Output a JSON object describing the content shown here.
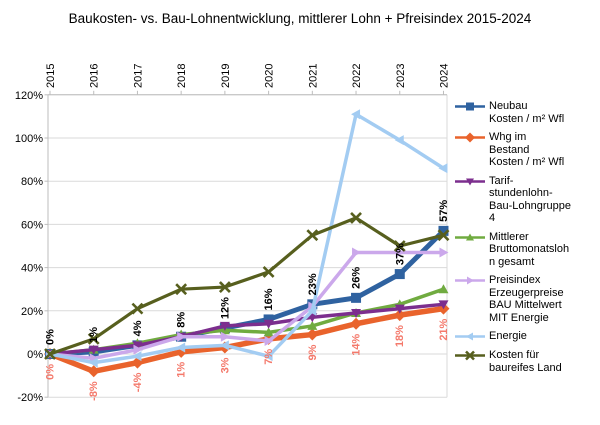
{
  "title": "Baukosten- vs. Bau-Lohnentwicklung, mittlerer Lohn + Pfreisindex 2015-2024",
  "chart_data": {
    "type": "line",
    "x_labels": [
      "2015",
      "2016",
      "2017",
      "2018",
      "2019",
      "2020",
      "2021",
      "2022",
      "2023",
      "2024"
    ],
    "ylim": [
      -20,
      120
    ],
    "y_ticks": [
      120,
      100,
      80,
      60,
      40,
      20,
      0,
      -20
    ],
    "y_tick_labels": [
      "120%",
      "100%",
      "80%",
      "60%",
      "40%",
      "20%",
      "0%",
      "-20%"
    ],
    "grid": true,
    "legend_position": "right",
    "series": [
      {
        "name": "Neubau Kosten / m² Wfl",
        "legend_lines": [
          "Neubau",
          "Kosten / m² Wfl"
        ],
        "color": "#2F62A0",
        "marker": "square",
        "values": [
          0,
          1,
          4,
          8,
          12,
          16,
          23,
          26,
          37,
          57
        ],
        "data_labels": [
          "0%",
          "1%",
          "4%",
          "8%",
          "12%",
          "16%",
          "23%",
          "26%",
          "37%",
          "57%"
        ],
        "label_color": "#000000",
        "label_position": "above"
      },
      {
        "name": "Whg im Bestand Kosten / m² Wfl",
        "legend_lines": [
          "Whg im",
          "Bestand",
          "Kosten / m² Wfl"
        ],
        "color": "#E9632C",
        "marker": "diamond",
        "values": [
          0,
          -8,
          -4,
          1,
          3,
          7,
          9,
          14,
          18,
          21
        ],
        "data_labels": [
          "0%",
          "-8%",
          "-4%",
          "1%",
          "3%",
          "7%",
          "9%",
          "14%",
          "18%",
          "21%"
        ],
        "label_color": "#F4796B",
        "label_position": "below"
      },
      {
        "name": "Tarif-stundenlohn-Bau-Lohngruppe 4",
        "legend_lines": [
          "Tarif-",
          "stundenlohn-",
          "Bau-Lohngruppe",
          "4"
        ],
        "color": "#7C2E8E",
        "marker": "triangle-down",
        "values": [
          0,
          2,
          4,
          8,
          13,
          14,
          17,
          19,
          21,
          23
        ]
      },
      {
        "name": "Mittlerer Bruttomonatslohn gesamt",
        "legend_lines": [
          "Mittlerer",
          "Bruttomonatsloh",
          "n gesamt"
        ],
        "color": "#70AB40",
        "marker": "triangle-up",
        "values": [
          0,
          2,
          5,
          9,
          11,
          10,
          13,
          19,
          23,
          30
        ]
      },
      {
        "name": "Preisindex Erzeugerpreise BAU Mittelwert MIT Energie",
        "legend_lines": [
          "Preisindex",
          "Erzeugerpreise",
          "BAU Mittelwert",
          "MIT Energie"
        ],
        "color": "#CBA8EB",
        "marker": "triangle-right",
        "values": [
          0,
          -2,
          2,
          8,
          8,
          6,
          22,
          47,
          47,
          47
        ]
      },
      {
        "name": "Energie",
        "legend_lines": [
          "Energie"
        ],
        "color": "#A3CCF2",
        "marker": "triangle-left",
        "values": [
          0,
          -4,
          -1,
          3,
          4,
          -1,
          20,
          111,
          99,
          86
        ]
      },
      {
        "name": "Kosten für baureifes Land",
        "legend_lines": [
          "Kosten für",
          "baureifes Land"
        ],
        "color": "#575F1E",
        "marker": "x",
        "values": [
          0,
          7,
          21,
          30,
          31,
          38,
          55,
          63,
          50,
          55
        ]
      }
    ]
  }
}
